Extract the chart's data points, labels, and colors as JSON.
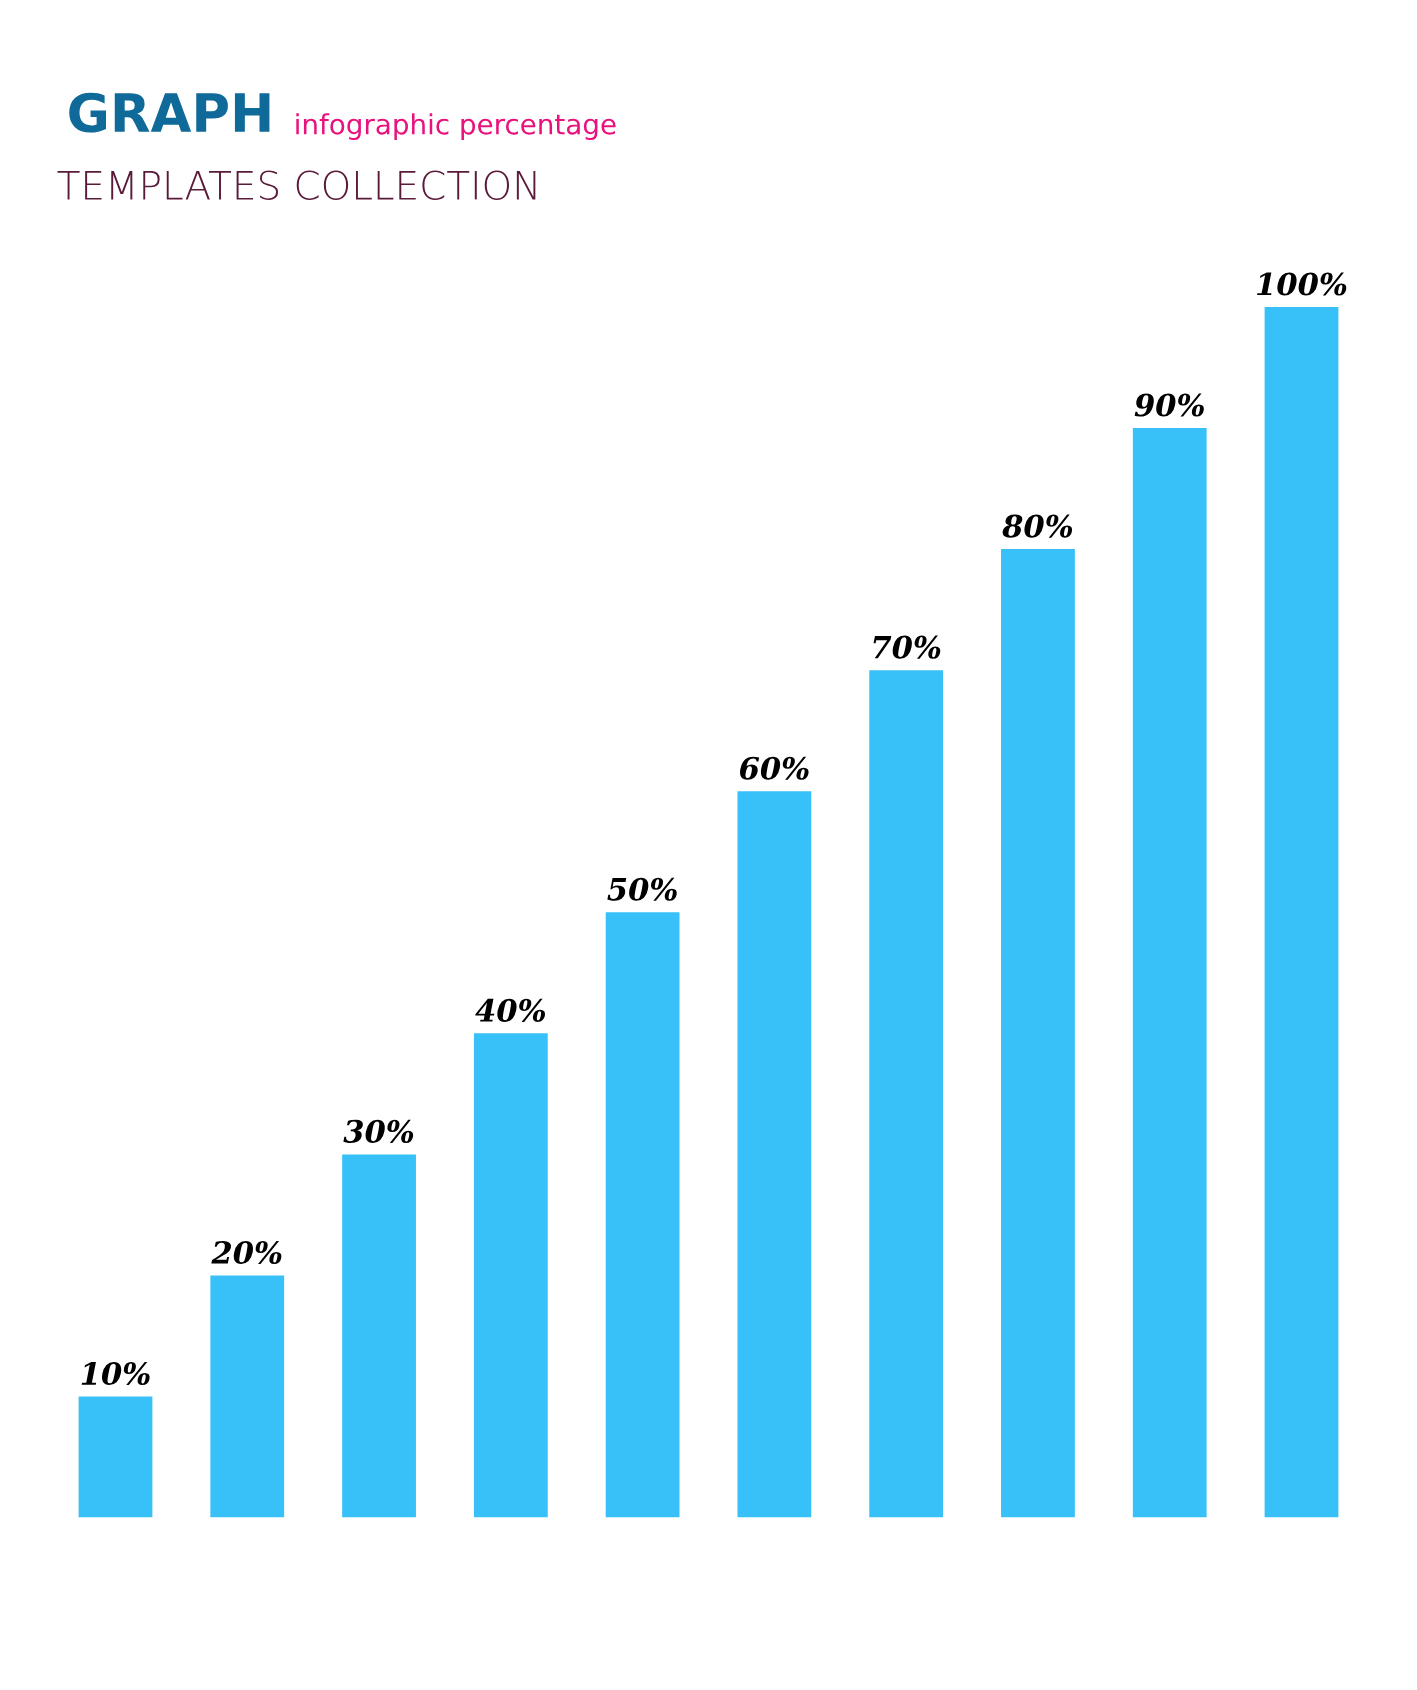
{
  "chart_data": {
    "type": "bar",
    "title": "GRAPH",
    "subtitle": "infographic percentage",
    "annotations": [
      "TEMPLATES COLLECTION"
    ],
    "categories": [
      null,
      null,
      null,
      null,
      null,
      null,
      null,
      null,
      null,
      null
    ],
    "values": [
      10,
      20,
      30,
      40,
      50,
      60,
      70,
      80,
      90,
      100
    ],
    "value_labels": [
      "10%",
      "20%",
      "30%",
      "40%",
      "50%",
      "60%",
      "70%",
      "80%",
      "90%",
      "100%"
    ],
    "color": "#38c0f8",
    "grid": false,
    "legend": false
  }
}
